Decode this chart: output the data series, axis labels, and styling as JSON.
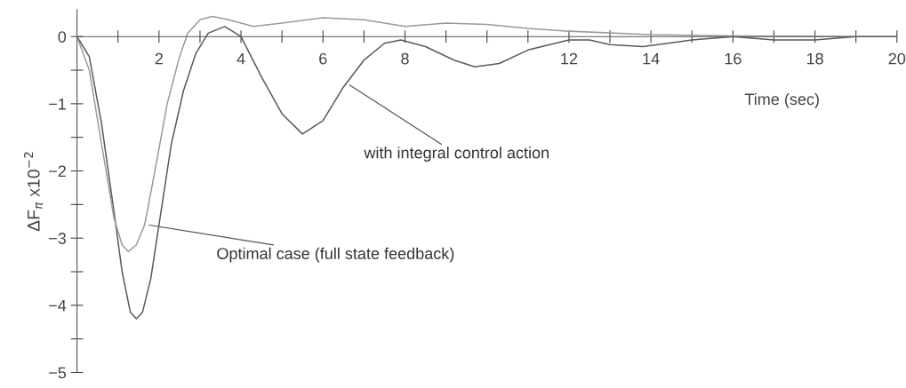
{
  "chart_data": {
    "type": "line",
    "xlabel": "Time (sec)",
    "ylabel": "ΔF$_{π}$ x10$^{−2}$",
    "x": [
      0,
      0.3,
      0.6,
      0.9,
      1.1,
      1.3,
      1.45,
      1.6,
      1.8,
      2.0,
      2.3,
      2.6,
      2.9,
      3.2,
      3.6,
      4.0,
      4.5,
      5.0,
      5.5,
      6.0,
      6.5,
      7.0,
      7.5,
      7.9,
      8.5,
      9.2,
      9.7,
      10.3,
      11,
      12,
      12.5,
      13,
      13.8,
      15,
      16,
      17,
      18,
      19,
      20
    ],
    "series": [
      {
        "color": "#5a5a5a",
        "values": [
          0,
          -0.3,
          -1.3,
          -2.6,
          -3.5,
          -4.1,
          -4.2,
          -4.1,
          -3.6,
          -2.8,
          -1.6,
          -0.8,
          -0.25,
          0.05,
          0.15,
          0.0,
          -0.6,
          -1.15,
          -1.45,
          -1.25,
          -0.75,
          -0.35,
          -0.1,
          -0.05,
          -0.15,
          -0.35,
          -0.45,
          -0.4,
          -0.2,
          -0.05,
          -0.05,
          -0.12,
          -0.15,
          -0.05,
          0.0,
          -0.05,
          -0.05,
          0,
          0
        ]
      },
      {
        "color": "#9a9a9a",
        "x": [
          0,
          0.3,
          0.6,
          0.9,
          1.1,
          1.25,
          1.45,
          1.65,
          1.9,
          2.2,
          2.5,
          2.7,
          3.0,
          3.3,
          3.7,
          4.3,
          5.0,
          6.0,
          7.0,
          8.0,
          9,
          10,
          11,
          12,
          14,
          16,
          20
        ],
        "values": [
          0,
          -0.5,
          -1.6,
          -2.7,
          -3.1,
          -3.2,
          -3.1,
          -2.8,
          -2.0,
          -1.0,
          -0.3,
          0.05,
          0.25,
          0.3,
          0.25,
          0.15,
          0.2,
          0.28,
          0.25,
          0.15,
          0.2,
          0.18,
          0.12,
          0.08,
          0.03,
          0.01,
          0
        ]
      }
    ],
    "annotations": [
      {
        "text": "with integral control action",
        "x": 6.6,
        "y": -0.7
      },
      {
        "text": "Optimal case (full state feedback)",
        "x": 1.7,
        "y": -2.8
      }
    ],
    "xlim": [
      0,
      20
    ],
    "xticks": [
      {
        "value": 1,
        "label": null
      },
      2,
      {
        "value": 3,
        "label": null
      },
      4,
      {
        "value": 5,
        "label": null
      },
      6,
      {
        "value": 7,
        "label": null
      },
      8,
      {
        "value": 9,
        "label": null
      },
      {
        "value": 10,
        "label": null
      },
      {
        "value": 11,
        "label": null
      },
      12,
      {
        "value": 13,
        "label": null
      },
      14,
      {
        "value": 15,
        "label": null
      },
      16,
      {
        "value": 17,
        "label": null
      },
      18,
      {
        "value": 19,
        "label": null
      },
      20
    ],
    "ylim": [
      -5,
      0.4
    ],
    "yticks": [
      -5,
      {
        "value": -4.5,
        "label": null
      },
      -4,
      {
        "value": -3.5,
        "label": null
      },
      -3,
      {
        "value": -2.5,
        "label": null
      },
      -2,
      {
        "value": -1.5,
        "label": null
      },
      -1,
      {
        "value": -0.5,
        "label": null
      },
      0
    ],
    "grid": false,
    "legend": false,
    "marker": "none",
    "line_style": "solid"
  }
}
